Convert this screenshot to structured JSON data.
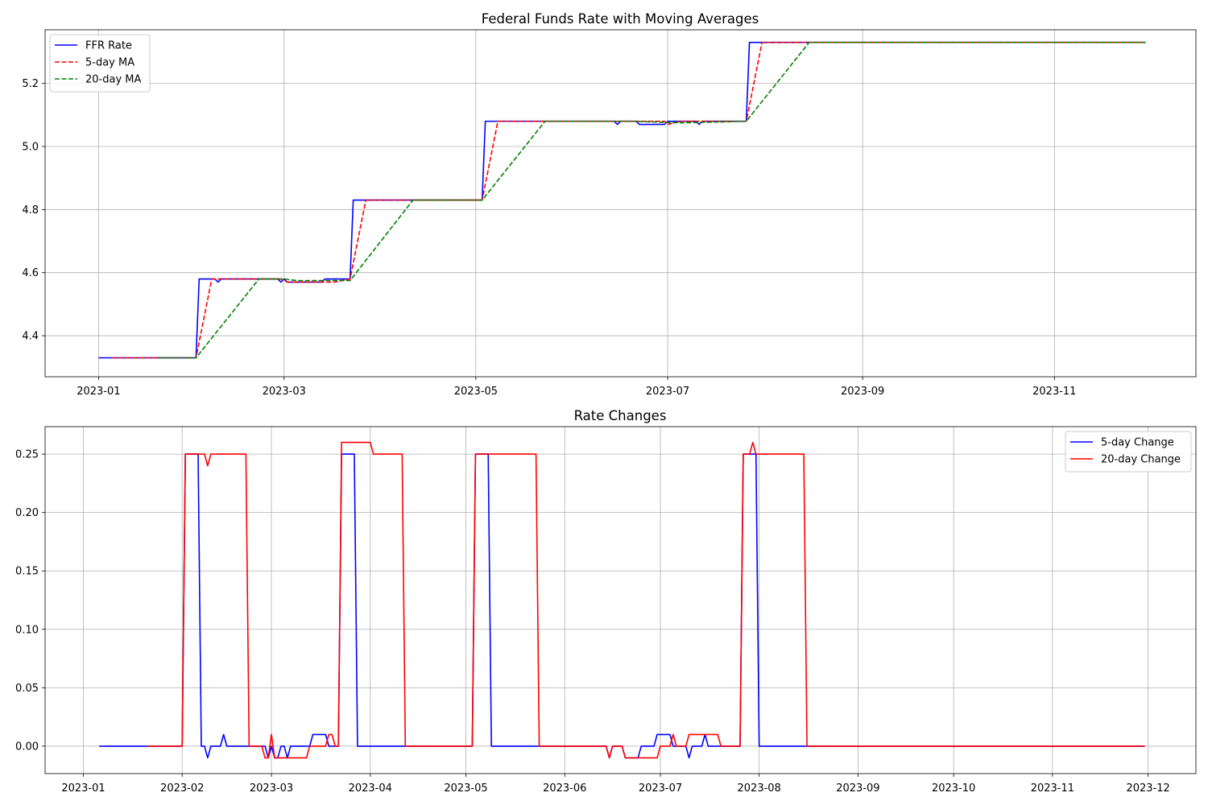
{
  "chart_data": [
    {
      "type": "line",
      "title": "Federal Funds Rate with Moving Averages",
      "xlabel": "",
      "ylabel": "",
      "x_range": [
        "2022-12-15",
        "2023-12-16"
      ],
      "ylim": [
        4.27,
        5.37
      ],
      "xticks": [
        "2023-01-01",
        "2023-03-01",
        "2023-05-01",
        "2023-07-01",
        "2023-09-01",
        "2023-11-01"
      ],
      "xtick_labels": [
        "2023-01",
        "2023-03",
        "2023-05",
        "2023-07",
        "2023-09",
        "2023-11"
      ],
      "yticks": [
        4.4,
        4.6,
        4.8,
        5.0,
        5.2
      ],
      "ytick_labels": [
        "4.4",
        "4.6",
        "4.8",
        "5.0",
        "5.2"
      ],
      "grid": true,
      "legend_position": "upper-left",
      "series": [
        {
          "name": "FFR Rate",
          "color": "#0000ff",
          "style": "solid",
          "points": [
            [
              "2023-01-01",
              4.33
            ],
            [
              "2023-02-01",
              4.33
            ],
            [
              "2023-02-02",
              4.58
            ],
            [
              "2023-02-07",
              4.58
            ],
            [
              "2023-02-08",
              4.57
            ],
            [
              "2023-02-09",
              4.58
            ],
            [
              "2023-02-27",
              4.58
            ],
            [
              "2023-02-28",
              4.57
            ],
            [
              "2023-03-01",
              4.58
            ],
            [
              "2023-03-02",
              4.57
            ],
            [
              "2023-03-13",
              4.57
            ],
            [
              "2023-03-14",
              4.58
            ],
            [
              "2023-03-22",
              4.58
            ],
            [
              "2023-03-23",
              4.83
            ],
            [
              "2023-05-03",
              4.83
            ],
            [
              "2023-05-04",
              5.08
            ],
            [
              "2023-06-14",
              5.08
            ],
            [
              "2023-06-15",
              5.07
            ],
            [
              "2023-06-16",
              5.08
            ],
            [
              "2023-06-21",
              5.08
            ],
            [
              "2023-06-22",
              5.07
            ],
            [
              "2023-06-30",
              5.07
            ],
            [
              "2023-07-01",
              5.08
            ],
            [
              "2023-07-10",
              5.08
            ],
            [
              "2023-07-11",
              5.07
            ],
            [
              "2023-07-12",
              5.08
            ],
            [
              "2023-07-26",
              5.08
            ],
            [
              "2023-07-27",
              5.33
            ],
            [
              "2023-11-30",
              5.33
            ]
          ]
        },
        {
          "name": "5-day MA",
          "color": "#ff0000",
          "style": "dashed",
          "points": [
            [
              "2023-01-05",
              4.33
            ],
            [
              "2023-02-01",
              4.33
            ],
            [
              "2023-02-06",
              4.58
            ],
            [
              "2023-02-28",
              4.58
            ],
            [
              "2023-03-02",
              4.57
            ],
            [
              "2023-03-17",
              4.57
            ],
            [
              "2023-03-22",
              4.58
            ],
            [
              "2023-03-27",
              4.83
            ],
            [
              "2023-05-03",
              4.83
            ],
            [
              "2023-05-08",
              5.08
            ],
            [
              "2023-06-30",
              5.08
            ],
            [
              "2023-07-01",
              5.07
            ],
            [
              "2023-07-05",
              5.08
            ],
            [
              "2023-07-26",
              5.08
            ],
            [
              "2023-07-31",
              5.33
            ],
            [
              "2023-11-30",
              5.33
            ]
          ]
        },
        {
          "name": "20-day MA",
          "color": "#008000",
          "style": "dashed",
          "points": [
            [
              "2023-01-20",
              4.33
            ],
            [
              "2023-02-01",
              4.33
            ],
            [
              "2023-02-21",
              4.58
            ],
            [
              "2023-03-01",
              4.58
            ],
            [
              "2023-03-05",
              4.575
            ],
            [
              "2023-03-22",
              4.575
            ],
            [
              "2023-04-11",
              4.83
            ],
            [
              "2023-05-03",
              4.83
            ],
            [
              "2023-05-23",
              5.08
            ],
            [
              "2023-06-20",
              5.08
            ],
            [
              "2023-07-05",
              5.075
            ],
            [
              "2023-07-26",
              5.08
            ],
            [
              "2023-08-15",
              5.33
            ],
            [
              "2023-11-30",
              5.33
            ]
          ]
        }
      ]
    },
    {
      "type": "line",
      "title": "Rate Changes",
      "xlabel": "",
      "ylabel": "",
      "x_range": [
        "2022-12-20",
        "2023-12-16"
      ],
      "ylim": [
        -0.0235,
        0.2735
      ],
      "xticks": [
        "2023-01-01",
        "2023-02-01",
        "2023-03-01",
        "2023-04-01",
        "2023-05-01",
        "2023-06-01",
        "2023-07-01",
        "2023-08-01",
        "2023-09-01",
        "2023-10-01",
        "2023-11-01",
        "2023-12-01"
      ],
      "xtick_labels": [
        "2023-01",
        "2023-02",
        "2023-03",
        "2023-04",
        "2023-05",
        "2023-06",
        "2023-07",
        "2023-08",
        "2023-09",
        "2023-10",
        "2023-11",
        "2023-12"
      ],
      "yticks": [
        0.0,
        0.05,
        0.1,
        0.15,
        0.2,
        0.25
      ],
      "ytick_labels": [
        "0.00",
        "0.05",
        "0.10",
        "0.15",
        "0.20",
        "0.25"
      ],
      "grid": true,
      "legend_position": "upper-right",
      "series": [
        {
          "name": "5-day Change",
          "color": "#0000ff",
          "style": "solid",
          "points": [
            [
              "2023-01-06",
              0.0
            ],
            [
              "2023-02-01",
              0.0
            ],
            [
              "2023-02-02",
              0.25
            ],
            [
              "2023-02-06",
              0.25
            ],
            [
              "2023-02-07",
              0.0
            ],
            [
              "2023-02-08",
              0.0
            ],
            [
              "2023-02-09",
              -0.01
            ],
            [
              "2023-02-10",
              0.0
            ],
            [
              "2023-02-13",
              0.0
            ],
            [
              "2023-02-14",
              0.01
            ],
            [
              "2023-02-15",
              0.0
            ],
            [
              "2023-02-27",
              0.0
            ],
            [
              "2023-02-28",
              -0.01
            ],
            [
              "2023-03-01",
              0.0
            ],
            [
              "2023-03-02",
              -0.01
            ],
            [
              "2023-03-03",
              -0.01
            ],
            [
              "2023-03-04",
              0.0
            ],
            [
              "2023-03-05",
              0.0
            ],
            [
              "2023-03-06",
              -0.01
            ],
            [
              "2023-03-07",
              0.0
            ],
            [
              "2023-03-13",
              0.0
            ],
            [
              "2023-03-14",
              0.01
            ],
            [
              "2023-03-18",
              0.01
            ],
            [
              "2023-03-19",
              0.0
            ],
            [
              "2023-03-22",
              0.0
            ],
            [
              "2023-03-23",
              0.25
            ],
            [
              "2023-03-27",
              0.25
            ],
            [
              "2023-03-28",
              0.0
            ],
            [
              "2023-05-03",
              0.0
            ],
            [
              "2023-05-04",
              0.25
            ],
            [
              "2023-05-08",
              0.25
            ],
            [
              "2023-05-09",
              0.0
            ],
            [
              "2023-06-14",
              0.0
            ],
            [
              "2023-06-15",
              -0.01
            ],
            [
              "2023-06-16",
              0.0
            ],
            [
              "2023-06-19",
              0.0
            ],
            [
              "2023-06-20",
              -0.01
            ],
            [
              "2023-06-24",
              -0.01
            ],
            [
              "2023-06-25",
              0.0
            ],
            [
              "2023-06-29",
              0.0
            ],
            [
              "2023-06-30",
              0.01
            ],
            [
              "2023-07-04",
              0.01
            ],
            [
              "2023-07-05",
              0.0
            ],
            [
              "2023-07-09",
              0.0
            ],
            [
              "2023-07-10",
              -0.01
            ],
            [
              "2023-07-11",
              0.0
            ],
            [
              "2023-07-14",
              0.0
            ],
            [
              "2023-07-15",
              0.01
            ],
            [
              "2023-07-16",
              0.0
            ],
            [
              "2023-07-26",
              0.0
            ],
            [
              "2023-07-27",
              0.25
            ],
            [
              "2023-07-31",
              0.25
            ],
            [
              "2023-08-01",
              0.0
            ],
            [
              "2023-11-30",
              0.0
            ]
          ]
        },
        {
          "name": "20-day Change",
          "color": "#ff0000",
          "style": "solid",
          "points": [
            [
              "2023-01-21",
              0.0
            ],
            [
              "2023-02-01",
              0.0
            ],
            [
              "2023-02-02",
              0.25
            ],
            [
              "2023-02-08",
              0.25
            ],
            [
              "2023-02-09",
              0.24
            ],
            [
              "2023-02-10",
              0.25
            ],
            [
              "2023-02-21",
              0.25
            ],
            [
              "2023-02-22",
              0.0
            ],
            [
              "2023-02-26",
              0.0
            ],
            [
              "2023-02-27",
              -0.01
            ],
            [
              "2023-02-28",
              -0.01
            ],
            [
              "2023-03-01",
              0.01
            ],
            [
              "2023-03-02",
              -0.01
            ],
            [
              "2023-03-12",
              -0.01
            ],
            [
              "2023-03-13",
              0.0
            ],
            [
              "2023-03-18",
              0.0
            ],
            [
              "2023-03-19",
              0.01
            ],
            [
              "2023-03-20",
              0.01
            ],
            [
              "2023-03-21",
              0.0
            ],
            [
              "2023-03-22",
              0.0
            ],
            [
              "2023-03-23",
              0.26
            ],
            [
              "2023-04-01",
              0.26
            ],
            [
              "2023-04-02",
              0.25
            ],
            [
              "2023-04-11",
              0.25
            ],
            [
              "2023-04-12",
              0.0
            ],
            [
              "2023-05-03",
              0.0
            ],
            [
              "2023-05-04",
              0.25
            ],
            [
              "2023-05-23",
              0.25
            ],
            [
              "2023-05-24",
              0.0
            ],
            [
              "2023-06-14",
              0.0
            ],
            [
              "2023-06-15",
              -0.01
            ],
            [
              "2023-06-16",
              0.0
            ],
            [
              "2023-06-19",
              0.0
            ],
            [
              "2023-06-20",
              -0.01
            ],
            [
              "2023-06-30",
              -0.01
            ],
            [
              "2023-07-01",
              0.0
            ],
            [
              "2023-07-04",
              0.0
            ],
            [
              "2023-07-05",
              0.01
            ],
            [
              "2023-07-06",
              0.0
            ],
            [
              "2023-07-09",
              0.0
            ],
            [
              "2023-07-10",
              0.01
            ],
            [
              "2023-07-19",
              0.01
            ],
            [
              "2023-07-20",
              0.0
            ],
            [
              "2023-07-26",
              0.0
            ],
            [
              "2023-07-27",
              0.25
            ],
            [
              "2023-07-29",
              0.25
            ],
            [
              "2023-07-30",
              0.26
            ],
            [
              "2023-07-31",
              0.25
            ],
            [
              "2023-08-15",
              0.25
            ],
            [
              "2023-08-16",
              0.0
            ],
            [
              "2023-11-30",
              0.0
            ]
          ]
        }
      ]
    }
  ]
}
